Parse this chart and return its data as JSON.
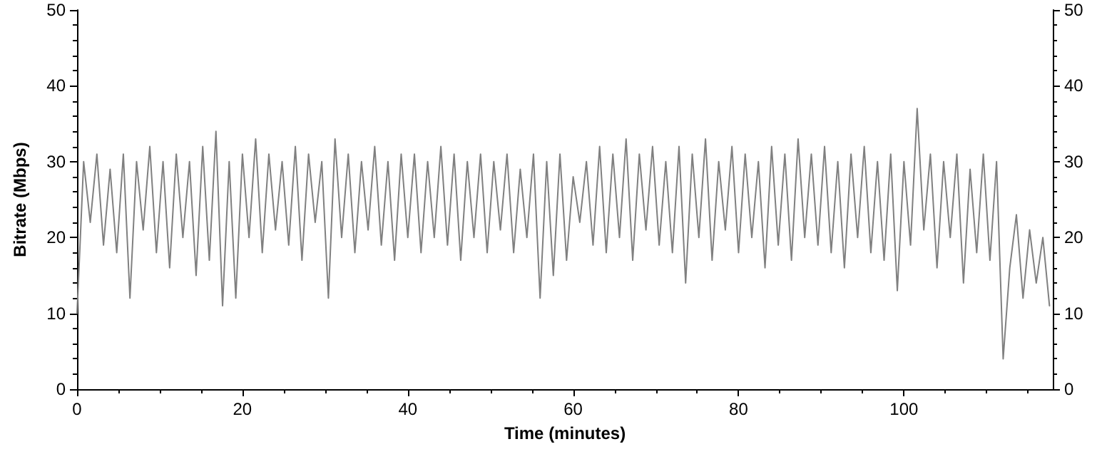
{
  "chart_data": {
    "type": "line",
    "xlabel": "Time (minutes)",
    "ylabel": "Bitrate (Mbps)",
    "x": [
      0,
      0.8,
      1.6,
      2.4,
      3.2,
      4,
      4.8,
      5.6,
      6.4,
      7.2,
      8,
      8.8,
      9.6,
      10.4,
      11.2,
      12,
      12.8,
      13.6,
      14.4,
      15.2,
      16,
      16.8,
      17.6,
      18.4,
      19.2,
      20,
      20.8,
      21.6,
      22.4,
      23.2,
      24,
      24.8,
      25.6,
      26.4,
      27.2,
      28,
      28.8,
      29.6,
      30.4,
      31.2,
      32,
      32.8,
      33.6,
      34.4,
      35.2,
      36,
      36.8,
      37.6,
      38.4,
      39.2,
      40,
      40.8,
      41.6,
      42.4,
      43.2,
      44,
      44.8,
      45.6,
      46.4,
      47.2,
      48,
      48.8,
      49.6,
      50.4,
      51.2,
      52,
      52.8,
      53.6,
      54.4,
      55.2,
      56,
      56.8,
      57.6,
      58.4,
      59.2,
      60,
      60.8,
      61.6,
      62.4,
      63.2,
      64,
      64.8,
      65.6,
      66.4,
      67.2,
      68,
      68.8,
      69.6,
      70.4,
      71.2,
      72,
      72.8,
      73.6,
      74.4,
      75.2,
      76,
      76.8,
      77.6,
      78.4,
      79.2,
      80,
      80.8,
      81.6,
      82.4,
      83.2,
      84,
      84.8,
      85.6,
      86.4,
      87.2,
      88,
      88.8,
      89.6,
      90.4,
      91.2,
      92,
      92.8,
      93.6,
      94.4,
      95.2,
      96,
      96.8,
      97.6,
      98.4,
      99.2,
      100,
      100.8,
      101.6,
      102.4,
      103.2,
      104,
      104.8,
      105.6,
      106.4,
      107.2,
      108,
      108.8,
      109.6,
      110.4,
      111.2,
      112,
      112.8,
      113.6,
      114.4,
      115.2,
      116,
      116.8,
      117.6
    ],
    "series": [
      {
        "color": "#808080",
        "values": [
          10,
          30,
          22,
          31,
          19,
          29,
          18,
          31,
          12,
          30,
          21,
          32,
          18,
          30,
          16,
          31,
          20,
          30,
          15,
          32,
          17,
          34,
          11,
          30,
          12,
          31,
          20,
          33,
          18,
          31,
          21,
          30,
          19,
          32,
          17,
          31,
          22,
          30,
          12,
          33,
          20,
          31,
          18,
          30,
          21,
          32,
          19,
          30,
          17,
          31,
          20,
          31,
          18,
          30,
          20,
          32,
          19,
          31,
          17,
          30,
          20,
          31,
          18,
          30,
          21,
          31,
          18,
          29,
          20,
          31,
          12,
          30,
          15,
          31,
          17,
          28,
          22,
          30,
          19,
          32,
          18,
          31,
          20,
          33,
          17,
          31,
          21,
          32,
          19,
          30,
          18,
          32,
          14,
          31,
          20,
          33,
          17,
          30,
          21,
          32,
          18,
          31,
          20,
          30,
          16,
          32,
          19,
          31,
          17,
          33,
          20,
          31,
          19,
          32,
          18,
          30,
          16,
          31,
          20,
          32,
          18,
          30,
          17,
          31,
          13,
          30,
          19,
          37,
          21,
          31,
          16,
          30,
          20,
          31,
          14,
          29,
          18,
          31,
          17,
          30,
          4,
          16,
          23,
          12,
          21,
          14,
          20,
          11
        ]
      }
    ],
    "xlim": [
      0,
      118
    ],
    "xticks": [
      0,
      20,
      40,
      60,
      80,
      100
    ],
    "ylim": [
      0,
      50
    ],
    "yticks": [
      0,
      10,
      20,
      30,
      40,
      50
    ],
    "y2lim": [
      0,
      50
    ],
    "y2ticks": [
      0,
      10,
      20,
      30,
      40,
      50
    ],
    "grid": false,
    "marker": "none",
    "line_style": "solid"
  }
}
